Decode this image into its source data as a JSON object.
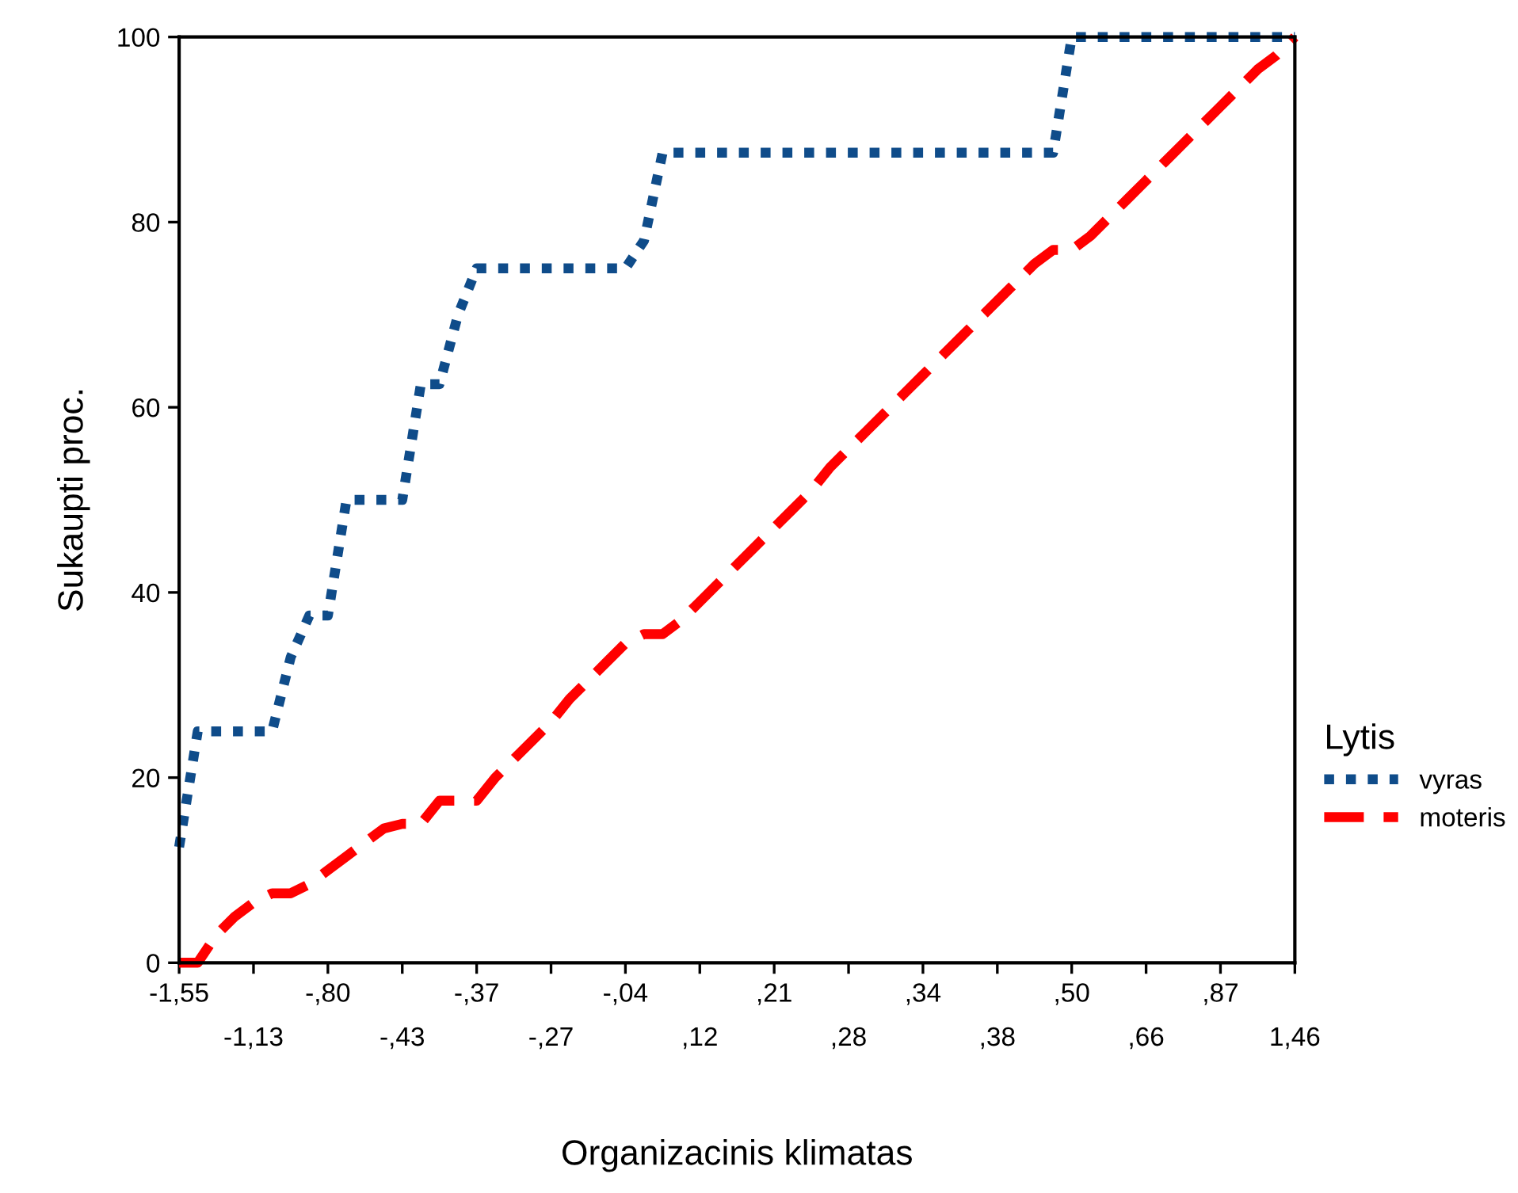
{
  "chart_data": {
    "type": "line",
    "xlabel": "Organizacinis klimatas",
    "ylabel": "Sukaupti proc.",
    "legend_title": "Lytis",
    "legend": "right",
    "grid": false,
    "marker": "none",
    "categories": [
      "-1,55",
      null,
      null,
      null,
      "-1,13",
      null,
      null,
      null,
      "-,80",
      null,
      null,
      null,
      "-,43",
      null,
      null,
      null,
      "-,37",
      null,
      null,
      null,
      "-,27",
      null,
      null,
      null,
      "-,04",
      null,
      null,
      null,
      ",12",
      null,
      null,
      null,
      ",21",
      null,
      null,
      null,
      ",28",
      null,
      null,
      null,
      ",34",
      null,
      null,
      null,
      ",38",
      null,
      null,
      null,
      ",50",
      null,
      null,
      null,
      ",66",
      null,
      null,
      null,
      ",87",
      null,
      null,
      null,
      "1,46"
    ],
    "ylim": [
      0,
      100
    ],
    "yticks": [
      0,
      20,
      40,
      60,
      80,
      100
    ],
    "series": [
      {
        "name": "vyras",
        "color": "#0f4c8a",
        "line_style": "dotted",
        "values": [
          12.5,
          25,
          25,
          25,
          25,
          25,
          33,
          37.5,
          37.5,
          50,
          50,
          50,
          50,
          62.5,
          62.5,
          70,
          75,
          75,
          75,
          75,
          75,
          75,
          75,
          75,
          75,
          78,
          87.5,
          87.5,
          87.5,
          87.5,
          87.5,
          87.5,
          87.5,
          87.5,
          87.5,
          87.5,
          87.5,
          87.5,
          87.5,
          87.5,
          87.5,
          87.5,
          87.5,
          87.5,
          87.5,
          87.5,
          87.5,
          87.5,
          100,
          100,
          100,
          100,
          100,
          100,
          100,
          100,
          100,
          100,
          100,
          100,
          100
        ]
      },
      {
        "name": "moteris",
        "color": "#ff0000",
        "line_style": "dashed",
        "values": [
          0,
          0,
          3,
          5,
          6.5,
          7.5,
          7.5,
          8.5,
          10,
          11.5,
          13,
          14.5,
          15,
          15,
          17.5,
          17.5,
          17.5,
          20,
          22,
          24,
          26,
          28.5,
          30.5,
          32.5,
          34.5,
          35.5,
          35.5,
          37,
          39,
          41,
          43,
          45,
          47,
          49,
          51,
          53.5,
          55.5,
          57.5,
          59.5,
          61.5,
          63.5,
          65.5,
          67.5,
          69.5,
          71.5,
          73.5,
          75.5,
          77,
          77,
          78.5,
          80.5,
          82.5,
          84.5,
          86.5,
          88.5,
          90.5,
          92.5,
          94.5,
          96.5,
          98,
          100
        ]
      }
    ]
  }
}
